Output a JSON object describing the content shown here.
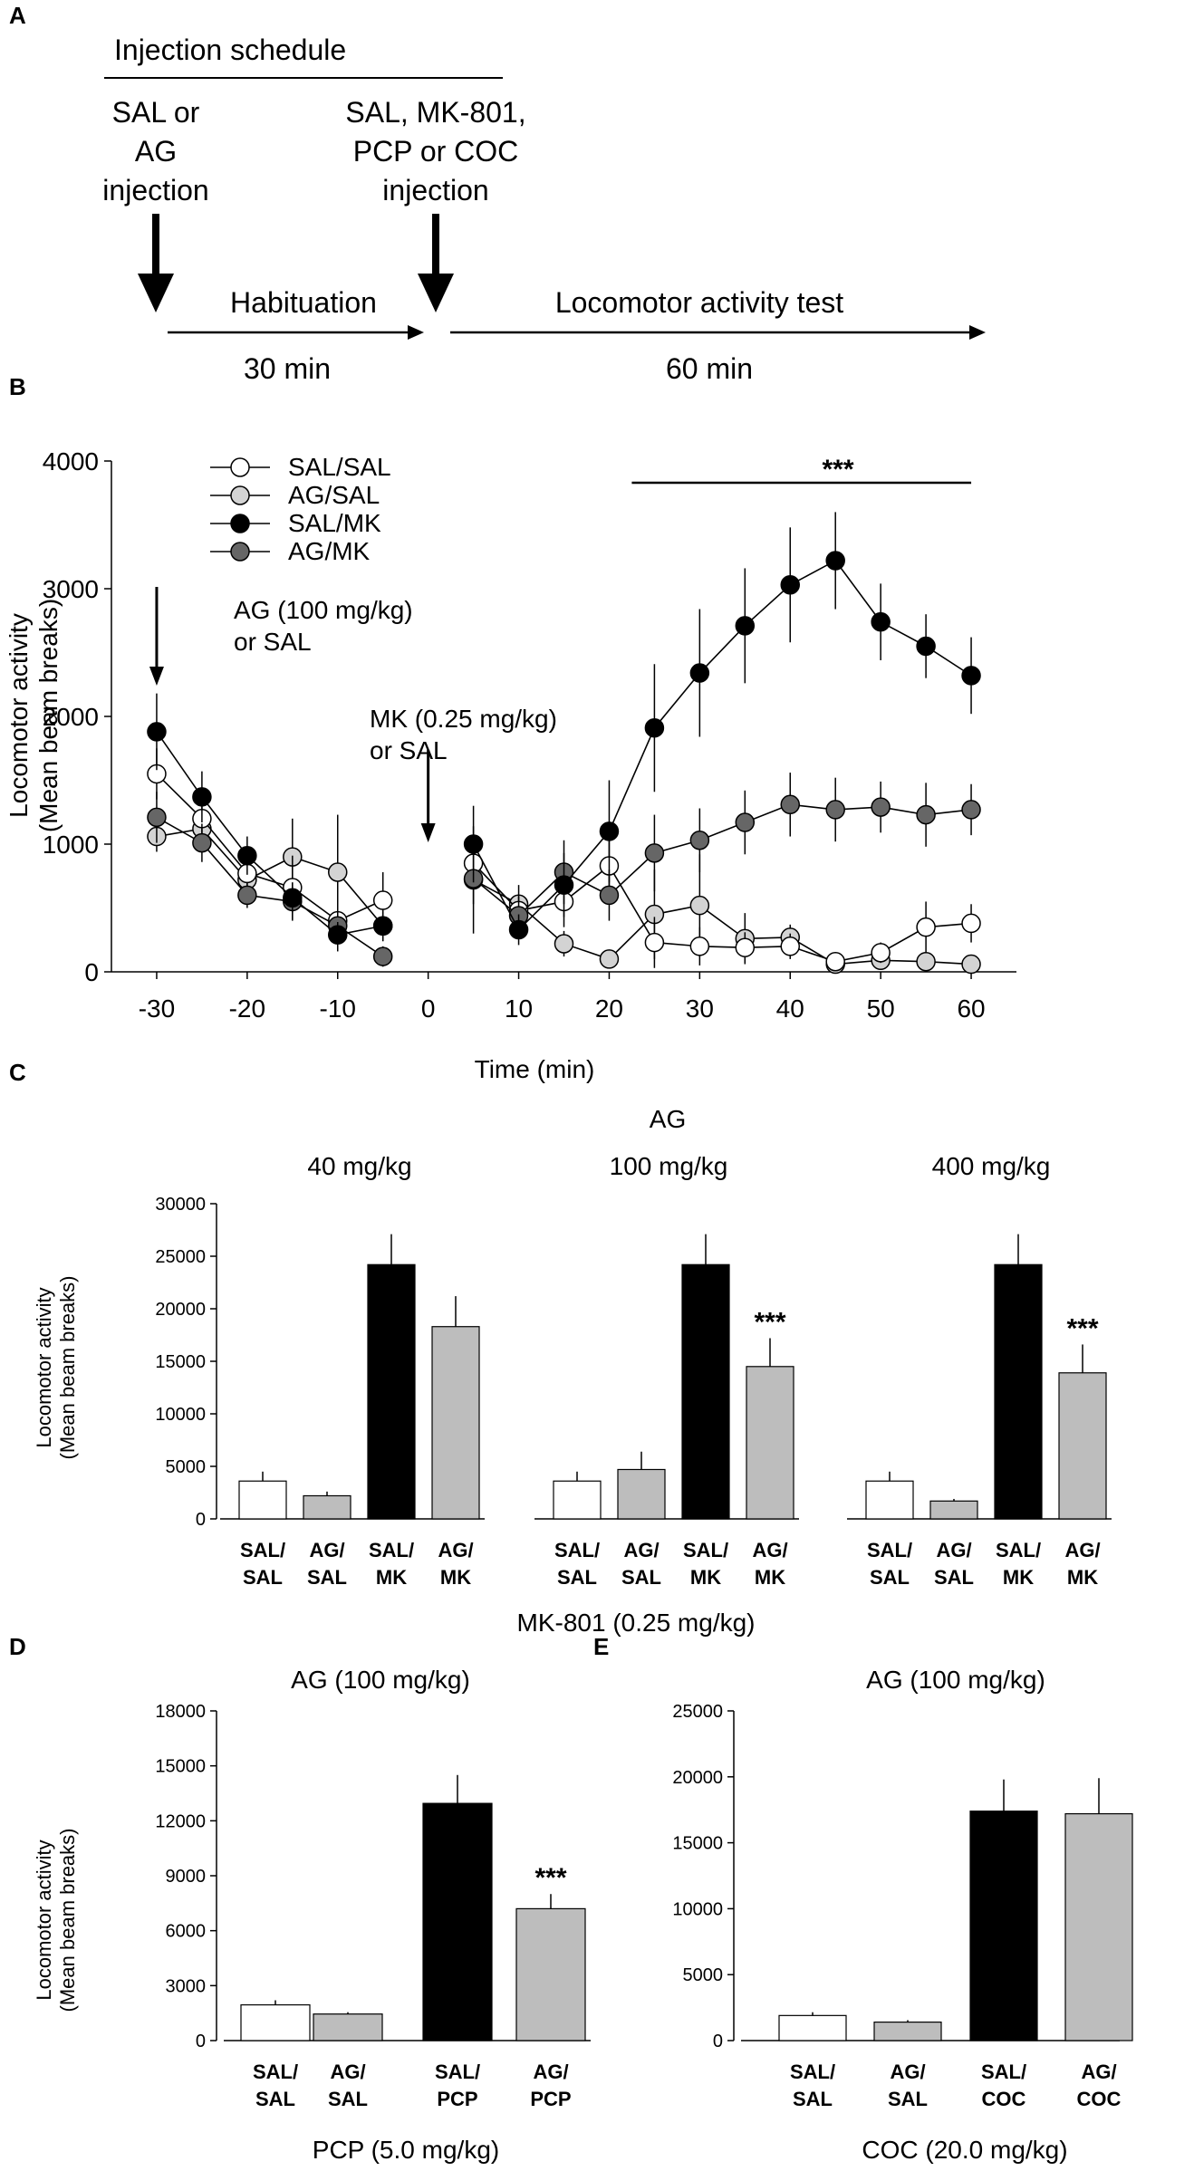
{
  "panel_a": {
    "label": "A",
    "title": "Injection schedule",
    "first_injection": [
      "SAL or",
      "AG",
      "injection"
    ],
    "second_injection": [
      "SAL, MK-801,",
      "PCP or COC",
      "injection"
    ],
    "habituation_label": "Habituation",
    "habituation_duration": "30 min",
    "test_label": "Locomotor activity test",
    "test_duration": "60 min"
  },
  "colors": {
    "SAL/SAL": "#ffffff",
    "AG/SAL": "#d3d3d3",
    "SAL/MK": "#000000",
    "AG/MK": "#666666",
    "bar_sal": "#ffffff",
    "bar_ag": "#bdbdbd",
    "bar_salmk": "#000000",
    "bar_agmk": "#bdbdbd"
  },
  "chart_data": [
    {
      "panel": "B",
      "type": "line",
      "xlabel": "Time (min)",
      "ylabel": [
        "Locomotor activity",
        "(Mean beam breaks)"
      ],
      "xlim": [
        -35,
        65
      ],
      "ylim": [
        0,
        4000
      ],
      "xticks": [
        -30,
        -20,
        -10,
        0,
        10,
        20,
        30,
        40,
        50,
        60
      ],
      "yticks": [
        0,
        1000,
        2000,
        3000,
        4000
      ],
      "annotations": {
        "ag_arrow": [
          "AG (100 mg/kg)",
          "or SAL"
        ],
        "mk_arrow": [
          "MK (0.25 mg/kg)",
          "or SAL"
        ],
        "significance": "***"
      },
      "series": [
        {
          "name": "SAL/SAL",
          "x": [
            -30,
            -25,
            -20,
            -15,
            -10,
            -5,
            5,
            10,
            15,
            20,
            25,
            30,
            35,
            40,
            45,
            50,
            55,
            60
          ],
          "y": [
            1550,
            1200,
            770,
            660,
            400,
            560,
            850,
            480,
            550,
            830,
            230,
            200,
            190,
            200,
            80,
            150,
            350,
            380
          ],
          "err": [
            200,
            150,
            150,
            250,
            180,
            220,
            150,
            120,
            200,
            250,
            200,
            150,
            120,
            100,
            60,
            80,
            200,
            150
          ]
        },
        {
          "name": "AG/SAL",
          "x": [
            -30,
            -25,
            -20,
            -15,
            -10,
            -5,
            5,
            10,
            15,
            20,
            25,
            30,
            35,
            40,
            45,
            50,
            55,
            60
          ],
          "y": [
            1060,
            1120,
            720,
            900,
            780,
            360,
            720,
            530,
            220,
            100,
            450,
            520,
            260,
            270,
            60,
            90,
            80,
            60
          ],
          "err": [
            120,
            150,
            150,
            300,
            450,
            120,
            420,
            150,
            100,
            50,
            350,
            400,
            200,
            100,
            40,
            50,
            50,
            40
          ]
        },
        {
          "name": "SAL/MK",
          "x": [
            -30,
            -25,
            -20,
            -15,
            -10,
            -5,
            5,
            10,
            15,
            20,
            25,
            30,
            35,
            40,
            45,
            50,
            55,
            60
          ],
          "y": [
            1880,
            1370,
            910,
            580,
            290,
            360,
            1000,
            330,
            680,
            1100,
            1910,
            2340,
            2710,
            3030,
            3220,
            2740,
            2550,
            2320
          ],
          "err": [
            300,
            200,
            150,
            120,
            100,
            120,
            300,
            120,
            250,
            400,
            500,
            500,
            450,
            450,
            380,
            300,
            250,
            300
          ]
        },
        {
          "name": "AG/MK",
          "x": [
            -30,
            -25,
            -20,
            -15,
            -10,
            -5,
            5,
            10,
            15,
            20,
            25,
            30,
            35,
            40,
            45,
            50,
            55,
            60
          ],
          "y": [
            1210,
            1010,
            600,
            550,
            360,
            120,
            730,
            440,
            780,
            600,
            930,
            1030,
            1170,
            1310,
            1270,
            1290,
            1230,
            1270
          ],
          "err": [
            200,
            150,
            100,
            150,
            200,
            80,
            200,
            150,
            250,
            200,
            300,
            250,
            250,
            250,
            250,
            200,
            250,
            200
          ]
        }
      ]
    },
    {
      "panel": "C",
      "type": "bar",
      "super_title": "AG",
      "xlabel": "MK-801 (0.25 mg/kg)",
      "ylabel": [
        "Locomotor activity",
        "(Mean beam breaks)"
      ],
      "ylim": [
        0,
        30000
      ],
      "yticks": [
        0,
        5000,
        10000,
        15000,
        20000,
        25000,
        30000
      ],
      "categories": [
        [
          "SAL/",
          "SAL"
        ],
        [
          "AG/",
          "SAL"
        ],
        [
          "SAL/",
          "MK"
        ],
        [
          "AG/",
          "MK"
        ]
      ],
      "groups": [
        {
          "title": "40 mg/kg",
          "values": [
            3600,
            2200,
            24200,
            18300
          ],
          "err": [
            900,
            400,
            2900,
            2900
          ],
          "stars": [
            "",
            "",
            "",
            ""
          ]
        },
        {
          "title": "100 mg/kg",
          "values": [
            3600,
            4700,
            24200,
            14500
          ],
          "err": [
            900,
            1700,
            2900,
            2700
          ],
          "stars": [
            "",
            "",
            "",
            "***"
          ]
        },
        {
          "title": "400 mg/kg",
          "values": [
            3600,
            1700,
            24200,
            13900
          ],
          "err": [
            900,
            200,
            2900,
            2700
          ],
          "stars": [
            "",
            "",
            "",
            "***"
          ]
        }
      ]
    },
    {
      "panel": "D",
      "type": "bar",
      "title": "AG (100 mg/kg)",
      "xlabel": "PCP (5.0 mg/kg)",
      "ylabel": [
        "Locomotor activity",
        "(Mean beam breaks)"
      ],
      "ylim": [
        0,
        18000
      ],
      "yticks": [
        0,
        3000,
        6000,
        9000,
        12000,
        15000,
        18000
      ],
      "categories": [
        [
          "SAL/",
          "SAL"
        ],
        [
          "AG/",
          "SAL"
        ],
        [
          "SAL/",
          "PCP"
        ],
        [
          "AG/",
          "PCP"
        ]
      ],
      "values": [
        1950,
        1450,
        12950,
        7200
      ],
      "err": [
        250,
        100,
        1550,
        800
      ],
      "stars": [
        "",
        "",
        "",
        "***"
      ]
    },
    {
      "panel": "E",
      "type": "bar",
      "title": "AG (100 mg/kg)",
      "xlabel": "COC (20.0 mg/kg)",
      "ylim": [
        0,
        25000
      ],
      "yticks": [
        0,
        5000,
        10000,
        15000,
        20000,
        25000
      ],
      "categories": [
        [
          "SAL/",
          "SAL"
        ],
        [
          "AG/",
          "SAL"
        ],
        [
          "SAL/",
          "COC"
        ],
        [
          "AG/",
          "COC"
        ]
      ],
      "values": [
        1900,
        1400,
        17400,
        17200
      ],
      "err": [
        250,
        150,
        2400,
        2700
      ],
      "stars": [
        "",
        "",
        "",
        ""
      ]
    }
  ]
}
